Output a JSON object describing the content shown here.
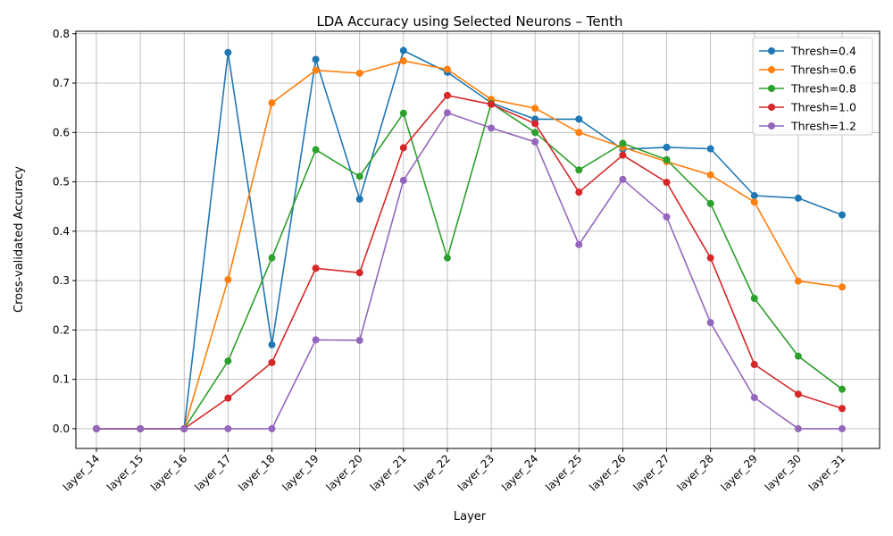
{
  "chart_data": {
    "type": "line",
    "title": "LDA Accuracy using Selected Neurons – Tenth",
    "xlabel": "Layer",
    "ylabel": "Cross-validated Accuracy",
    "categories": [
      "layer_14",
      "layer_15",
      "layer_16",
      "layer_17",
      "layer_18",
      "layer_19",
      "layer_20",
      "layer_21",
      "layer_22",
      "layer_23",
      "layer_24",
      "layer_25",
      "layer_26",
      "layer_27",
      "layer_28",
      "layer_29",
      "layer_30",
      "layer_31"
    ],
    "ylim": [
      -0.04,
      0.805
    ],
    "yticks": [
      0.0,
      0.1,
      0.2,
      0.3,
      0.4,
      0.5,
      0.6,
      0.7,
      0.8
    ],
    "ytick_labels": [
      "0.0",
      "0.1",
      "0.2",
      "0.3",
      "0.4",
      "0.5",
      "0.6",
      "0.7",
      "0.8"
    ],
    "grid": true,
    "legend_position": "top-right",
    "series": [
      {
        "name": "Thresh=0.4",
        "color": "#1f77b4",
        "values": [
          0.0,
          0.0,
          0.0,
          0.762,
          0.17,
          0.748,
          0.465,
          0.766,
          0.722,
          0.66,
          0.627,
          0.627,
          0.566,
          0.57,
          0.567,
          0.472,
          0.467,
          0.433
        ]
      },
      {
        "name": "Thresh=0.6",
        "color": "#ff7f0e",
        "values": [
          0.0,
          0.0,
          0.0,
          0.302,
          0.66,
          0.726,
          0.72,
          0.745,
          0.728,
          0.667,
          0.649,
          0.6,
          0.57,
          0.541,
          0.514,
          0.459,
          0.299,
          0.287
        ]
      },
      {
        "name": "Thresh=0.8",
        "color": "#2ca02c",
        "values": [
          0.0,
          0.0,
          0.0,
          0.137,
          0.346,
          0.565,
          0.511,
          0.639,
          0.346,
          0.659,
          0.6,
          0.524,
          0.578,
          0.545,
          0.456,
          0.264,
          0.147,
          0.08
        ]
      },
      {
        "name": "Thresh=1.0",
        "color": "#d62728",
        "values": [
          0.0,
          0.0,
          0.0,
          0.062,
          0.134,
          0.325,
          0.316,
          0.569,
          0.675,
          0.657,
          0.618,
          0.479,
          0.554,
          0.499,
          0.346,
          0.13,
          0.07,
          0.041
        ]
      },
      {
        "name": "Thresh=1.2",
        "color": "#9467bd",
        "values": [
          0.0,
          0.0,
          0.0,
          0.0,
          0.0,
          0.18,
          0.179,
          0.503,
          0.64,
          0.609,
          0.581,
          0.373,
          0.505,
          0.429,
          0.215,
          0.063,
          0.0,
          0.0
        ]
      }
    ]
  }
}
